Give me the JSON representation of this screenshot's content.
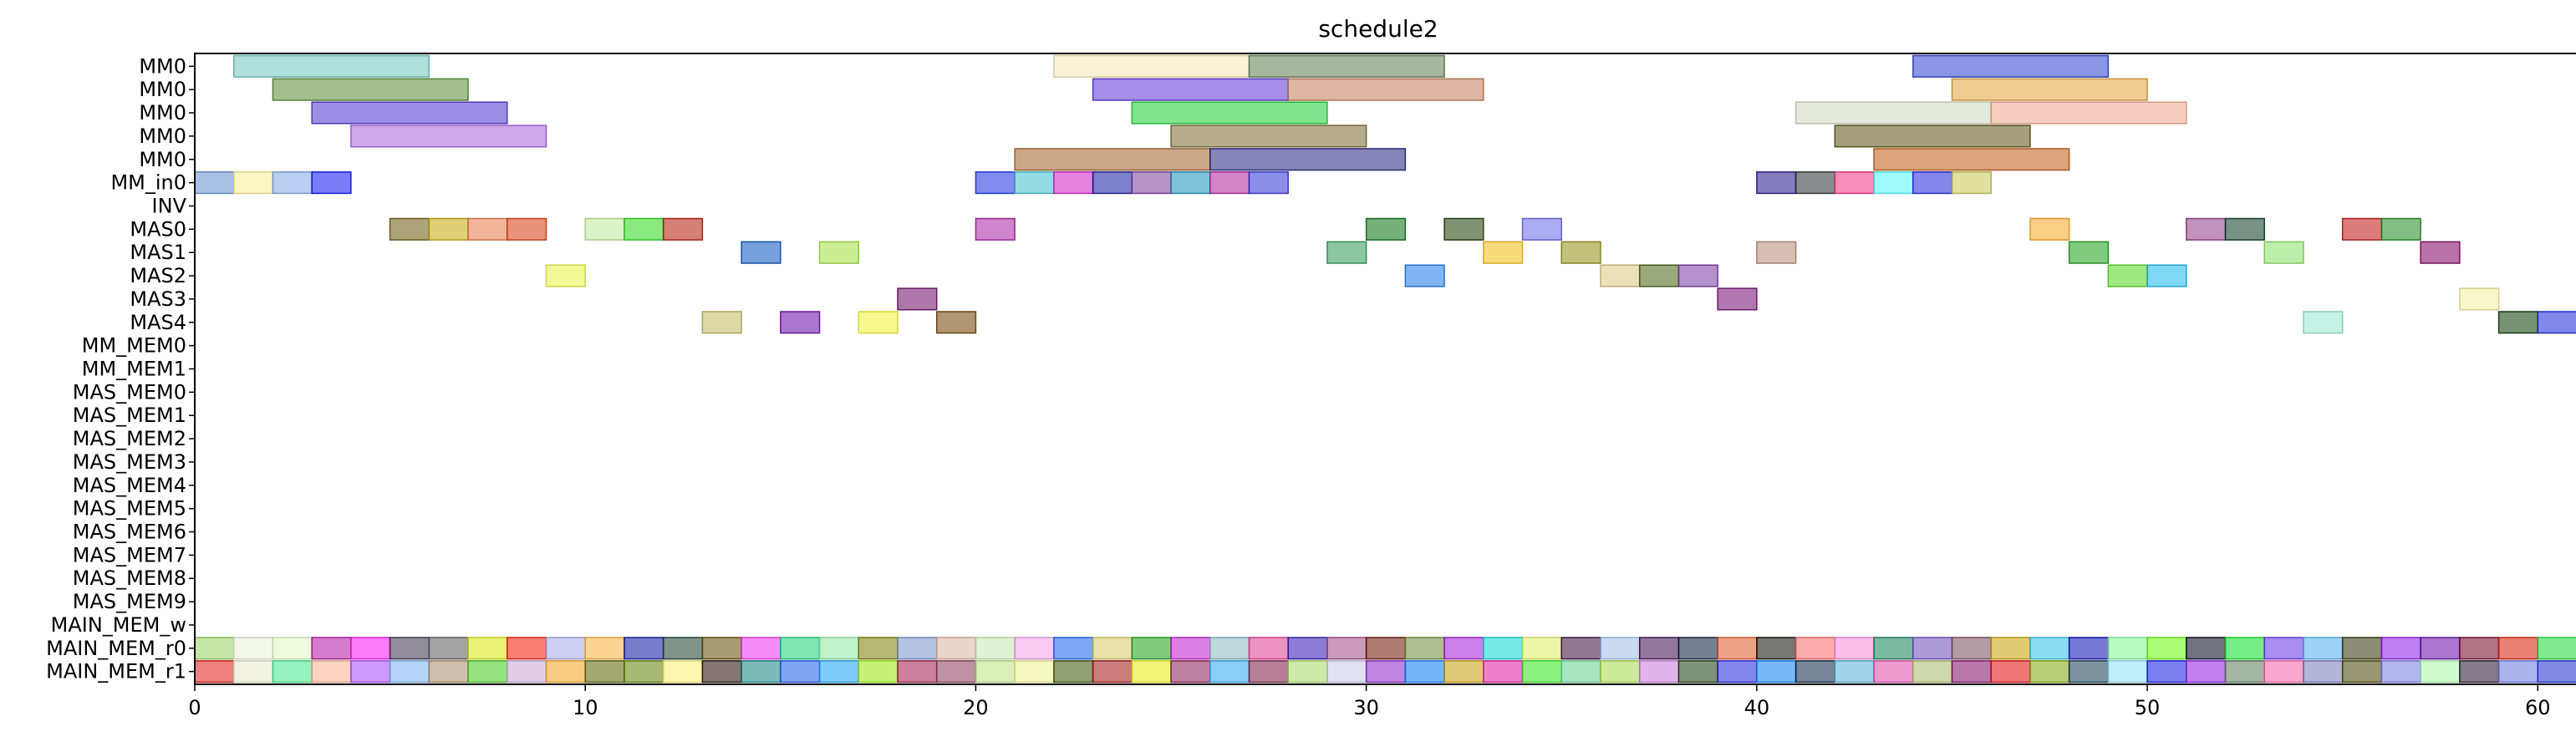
{
  "chart_data": {
    "type": "gantt",
    "title": "schedule2",
    "xlabel": "",
    "ylabel": "",
    "xlim": [
      0,
      61
    ],
    "x_ticks": [
      0,
      10,
      20,
      30,
      40,
      50,
      60
    ],
    "grid": false,
    "legend": "none",
    "rows": [
      "MM0",
      "MM0",
      "MM0",
      "MM0",
      "MM0",
      "MM_in0",
      "INV",
      "MAS0",
      "MAS1",
      "MAS2",
      "MAS3",
      "MAS4",
      "MM_MEM0",
      "MM_MEM1",
      "MAS_MEM0",
      "MAS_MEM1",
      "MAS_MEM2",
      "MAS_MEM3",
      "MAS_MEM4",
      "MAS_MEM5",
      "MAS_MEM6",
      "MAS_MEM7",
      "MAS_MEM8",
      "MAS_MEM9",
      "MAIN_MEM_w",
      "MAIN_MEM_r0",
      "MAIN_MEM_r1"
    ],
    "tasks": [
      {
        "row": 0,
        "start": 1,
        "end": 6,
        "color": "#6fc6c0"
      },
      {
        "row": 0,
        "start": 22,
        "end": 27,
        "color": "#f3e8b6"
      },
      {
        "row": 0,
        "start": 27,
        "end": 32,
        "color": "#5f7c50"
      },
      {
        "row": 0,
        "start": 44,
        "end": 49,
        "color": "#2c3fd0"
      },
      {
        "row": 1,
        "start": 2,
        "end": 7,
        "color": "#5a8a32"
      },
      {
        "row": 1,
        "start": 23,
        "end": 28,
        "color": "#5a32d8"
      },
      {
        "row": 1,
        "start": 28,
        "end": 33,
        "color": "#c07a55"
      },
      {
        "row": 1,
        "start": 45,
        "end": 50,
        "color": "#e0a238"
      },
      {
        "row": 2,
        "start": 3,
        "end": 8,
        "color": "#4a32d0"
      },
      {
        "row": 2,
        "start": 24,
        "end": 29,
        "color": "#1ccc32"
      },
      {
        "row": 2,
        "start": 41,
        "end": 46,
        "color": "#d2d8c0"
      },
      {
        "row": 2,
        "start": 46,
        "end": 51,
        "color": "#f0a890"
      },
      {
        "row": 3,
        "start": 4,
        "end": 9,
        "color": "#a860e0"
      },
      {
        "row": 3,
        "start": 25,
        "end": 30,
        "color": "#7a6a32"
      },
      {
        "row": 3,
        "start": 42,
        "end": 47,
        "color": "#5a5010"
      },
      {
        "row": 4,
        "start": 21,
        "end": 26,
        "color": "#a0602a"
      },
      {
        "row": 4,
        "start": 26,
        "end": 31,
        "color": "#20207e"
      },
      {
        "row": 4,
        "start": 43,
        "end": 48,
        "color": "#c05a10"
      },
      {
        "row": 5,
        "start": 0,
        "end": 1,
        "color": "#6090d0"
      },
      {
        "row": 5,
        "start": 1,
        "end": 2,
        "color": "#f8f090"
      },
      {
        "row": 5,
        "start": 2,
        "end": 3,
        "color": "#80a8e8"
      },
      {
        "row": 5,
        "start": 3,
        "end": 4,
        "color": "#0a10f0"
      },
      {
        "row": 5,
        "start": 20,
        "end": 21,
        "color": "#1830e0"
      },
      {
        "row": 5,
        "start": 21,
        "end": 22,
        "color": "#40c0d0"
      },
      {
        "row": 5,
        "start": 22,
        "end": 23,
        "color": "#d020c8"
      },
      {
        "row": 5,
        "start": 23,
        "end": 24,
        "color": "#1018a0"
      },
      {
        "row": 5,
        "start": 24,
        "end": 25,
        "color": "#7a3c98"
      },
      {
        "row": 5,
        "start": 25,
        "end": 26,
        "color": "#1890b8"
      },
      {
        "row": 5,
        "start": 26,
        "end": 27,
        "color": "#b0209a"
      },
      {
        "row": 5,
        "start": 27,
        "end": 28,
        "color": "#3030d8"
      },
      {
        "row": 5,
        "start": 40,
        "end": 41,
        "color": "#201088"
      },
      {
        "row": 5,
        "start": 41,
        "end": 42,
        "color": "#283030"
      },
      {
        "row": 5,
        "start": 42,
        "end": 43,
        "color": "#f03080"
      },
      {
        "row": 5,
        "start": 43,
        "end": 44,
        "color": "#50f8f8"
      },
      {
        "row": 5,
        "start": 44,
        "end": 45,
        "color": "#2020e0"
      },
      {
        "row": 5,
        "start": 45,
        "end": 46,
        "color": "#c8c850"
      },
      {
        "row": 7,
        "start": 5,
        "end": 6,
        "color": "#6a5a10"
      },
      {
        "row": 7,
        "start": 6,
        "end": 7,
        "color": "#c8a808"
      },
      {
        "row": 7,
        "start": 7,
        "end": 8,
        "color": "#e87848"
      },
      {
        "row": 7,
        "start": 8,
        "end": 9,
        "color": "#d83810"
      },
      {
        "row": 7,
        "start": 10,
        "end": 11,
        "color": "#c0e898"
      },
      {
        "row": 7,
        "start": 11,
        "end": 12,
        "color": "#28d818"
      },
      {
        "row": 7,
        "start": 12,
        "end": 13,
        "color": "#b01808"
      },
      {
        "row": 7,
        "start": 20,
        "end": 21,
        "color": "#a820a0"
      },
      {
        "row": 7,
        "start": 30,
        "end": 31,
        "color": "#0a7010"
      },
      {
        "row": 7,
        "start": 32,
        "end": 33,
        "color": "#1a3a00"
      },
      {
        "row": 7,
        "start": 34,
        "end": 35,
        "color": "#6868e8"
      },
      {
        "row": 7,
        "start": 47,
        "end": 48,
        "color": "#f8a820"
      },
      {
        "row": 7,
        "start": 51,
        "end": 52,
        "color": "#903888"
      },
      {
        "row": 7,
        "start": 52,
        "end": 53,
        "color": "#083820"
      },
      {
        "row": 7,
        "start": 55,
        "end": 56,
        "color": "#c01010"
      },
      {
        "row": 7,
        "start": 56,
        "end": 57,
        "color": "#208820"
      },
      {
        "row": 8,
        "start": 14,
        "end": 15,
        "color": "#0850c0"
      },
      {
        "row": 8,
        "start": 16,
        "end": 17,
        "color": "#a0e038"
      },
      {
        "row": 8,
        "start": 29,
        "end": 30,
        "color": "#309858"
      },
      {
        "row": 8,
        "start": 33,
        "end": 34,
        "color": "#f0c010"
      },
      {
        "row": 8,
        "start": 35,
        "end": 36,
        "color": "#909010"
      },
      {
        "row": 8,
        "start": 40,
        "end": 41,
        "color": "#b88878"
      },
      {
        "row": 8,
        "start": 48,
        "end": 49,
        "color": "#18a018"
      },
      {
        "row": 8,
        "start": 53,
        "end": 54,
        "color": "#88e068"
      },
      {
        "row": 8,
        "start": 57,
        "end": 58,
        "color": "#800060"
      },
      {
        "row": 9,
        "start": 9,
        "end": 10,
        "color": "#e8f840"
      },
      {
        "row": 9,
        "start": 31,
        "end": 32,
        "color": "#1878e8"
      },
      {
        "row": 9,
        "start": 36,
        "end": 37,
        "color": "#d8c880"
      },
      {
        "row": 9,
        "start": 37,
        "end": 38,
        "color": "#486010"
      },
      {
        "row": 9,
        "start": 38,
        "end": 39,
        "color": "#7838a0"
      },
      {
        "row": 9,
        "start": 49,
        "end": 50,
        "color": "#50d818"
      },
      {
        "row": 9,
        "start": 50,
        "end": 51,
        "color": "#18b8f0"
      },
      {
        "row": 10,
        "start": 18,
        "end": 19,
        "color": "#6a0868"
      },
      {
        "row": 10,
        "start": 39,
        "end": 40,
        "color": "#700870"
      },
      {
        "row": 10,
        "start": 58,
        "end": 59,
        "color": "#f0f0a0"
      },
      {
        "row": 11,
        "start": 13,
        "end": 14,
        "color": "#c0b860"
      },
      {
        "row": 11,
        "start": 15,
        "end": 16,
        "color": "#6808a8"
      },
      {
        "row": 11,
        "start": 17,
        "end": 18,
        "color": "#f0f830"
      },
      {
        "row": 11,
        "start": 19,
        "end": 20,
        "color": "#704000"
      },
      {
        "row": 11,
        "start": 54,
        "end": 55,
        "color": "#98e8d0"
      },
      {
        "row": 11,
        "start": 59,
        "end": 60,
        "color": "#083800"
      },
      {
        "row": 11,
        "start": 60,
        "end": 61,
        "color": "#1828d8"
      }
    ],
    "mem_rows": {
      "r0": {
        "row": 25,
        "colors": [
          "#98d060",
          "#e8f0d8",
          "#e0f8c0",
          "#b010a0",
          "#f810f0",
          "#383048",
          "#585858",
          "#d8e808",
          "#f01800",
          "#a8a8e8",
          "#f8b038",
          "#0810a0",
          "#184030",
          "#604800",
          "#f030f0",
          "#18d078",
          "#90e8a0",
          "#788000",
          "#7890c8",
          "#d8b0a0",
          "#c8e8b0",
          "#f0a0e8",
          "#1060f0",
          "#d8c860",
          "#18a018",
          "#c018d0",
          "#88b8c0",
          "#e03890",
          "#3010b0",
          "#a04880",
          "#681000",
          "#708838",
          "#a018d8",
          "#08d8d0",
          "#e0f060",
          "#380838",
          "#a0c0e8",
          "#3a0848",
          "#081838",
          "#e05828",
          "#080800",
          "#f86868",
          "#f888d8",
          "#108058",
          "#6848b8",
          "#784858",
          "#c8a000",
          "#30c0e8",
          "#0808b8",
          "#78f890",
          "#68f808",
          "#000018",
          "#08e020",
          "#6030e8",
          "#50b0f0",
          "#303008",
          "#8818e8",
          "#6808a8",
          "#700020",
          "#d81800",
          "#18d838"
        ]
      },
      "r1": {
        "row": 26,
        "colors": [
          "#e01818",
          "#e8e8d0",
          "#40e888",
          "#f8b090",
          "#a848f8",
          "#78b0f0",
          "#a88868",
          "#40c818",
          "#c8a8d8",
          "#f8a020",
          "#586000",
          "#608000",
          "#f8f070",
          "#200800",
          "#108080",
          "#1858e8",
          "#18a0f0",
          "#98e808",
          "#a01848",
          "#883858",
          "#c0e080",
          "#f0f090",
          "#385000",
          "#a01010",
          "#e8f010",
          "#881850",
          "#28a8f0",
          "#781840",
          "#a8d860",
          "#c8c8e8",
          "#8820c8",
          "#0878f8",
          "#c8a008",
          "#e018a0",
          "#30e818",
          "#60d090",
          "#a8d848",
          "#c878d8",
          "#183808",
          "#2020e0",
          "#0880f0",
          "#082040",
          "#50b0d8",
          "#e048a8",
          "#a8b868",
          "#800860",
          "#e00808",
          "#80a808",
          "#103850",
          "#90e0f8",
          "#1018e0",
          "#9018e0",
          "#587858",
          "#f860a8",
          "#7878b8",
          "#404000",
          "#7878e8",
          "#a8f8a8",
          "#201028",
          "#6878e0",
          "#1828d0"
        ]
      }
    }
  }
}
